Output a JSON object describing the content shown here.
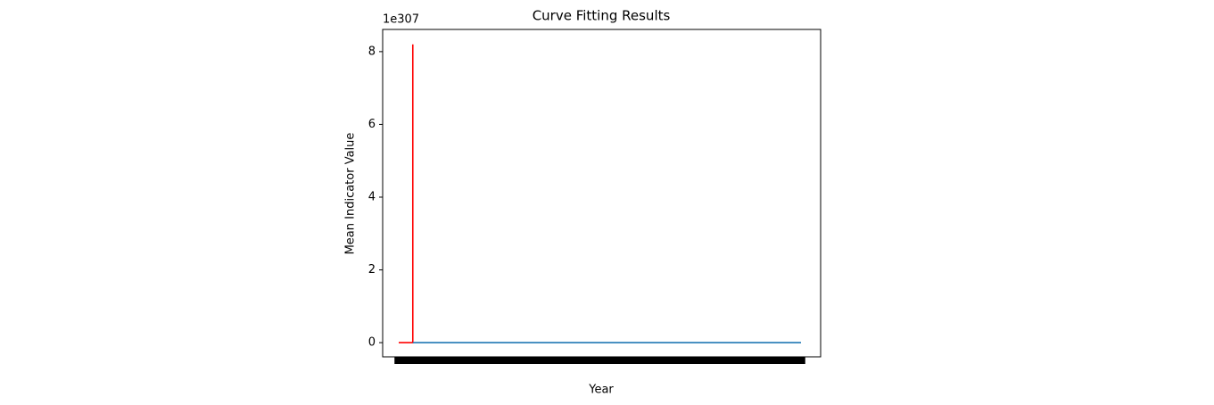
{
  "chart_data": {
    "type": "line",
    "title": "Curve Fitting Results",
    "xlabel": "Year",
    "ylabel": "Mean Indicator Value",
    "y_offset_label": "1e307",
    "series": [
      {
        "color": "#ff0000",
        "x": [
          0,
          3.5,
          3.5
        ],
        "values": [
          0,
          0,
          8.2
        ]
      },
      {
        "color": "#1f77b4",
        "x": [
          3.5,
          100
        ],
        "values": [
          0,
          0
        ]
      }
    ],
    "xlim": [
      -3.99,
      104.88
    ],
    "ylim": [
      -0.39,
      8.61
    ],
    "xticks": [
      0,
      2,
      4,
      6,
      8,
      10,
      12,
      14,
      16,
      18,
      20,
      22,
      24,
      26,
      28,
      30,
      32,
      34,
      36,
      38,
      40,
      42,
      44,
      46,
      48,
      50,
      52,
      54,
      56,
      58,
      60,
      62,
      64,
      66,
      68,
      70,
      72,
      74,
      76,
      78,
      80,
      82,
      84,
      86,
      88,
      90,
      92,
      94,
      96,
      98,
      100
    ],
    "yticks": [
      0,
      2,
      4,
      6,
      8
    ]
  }
}
